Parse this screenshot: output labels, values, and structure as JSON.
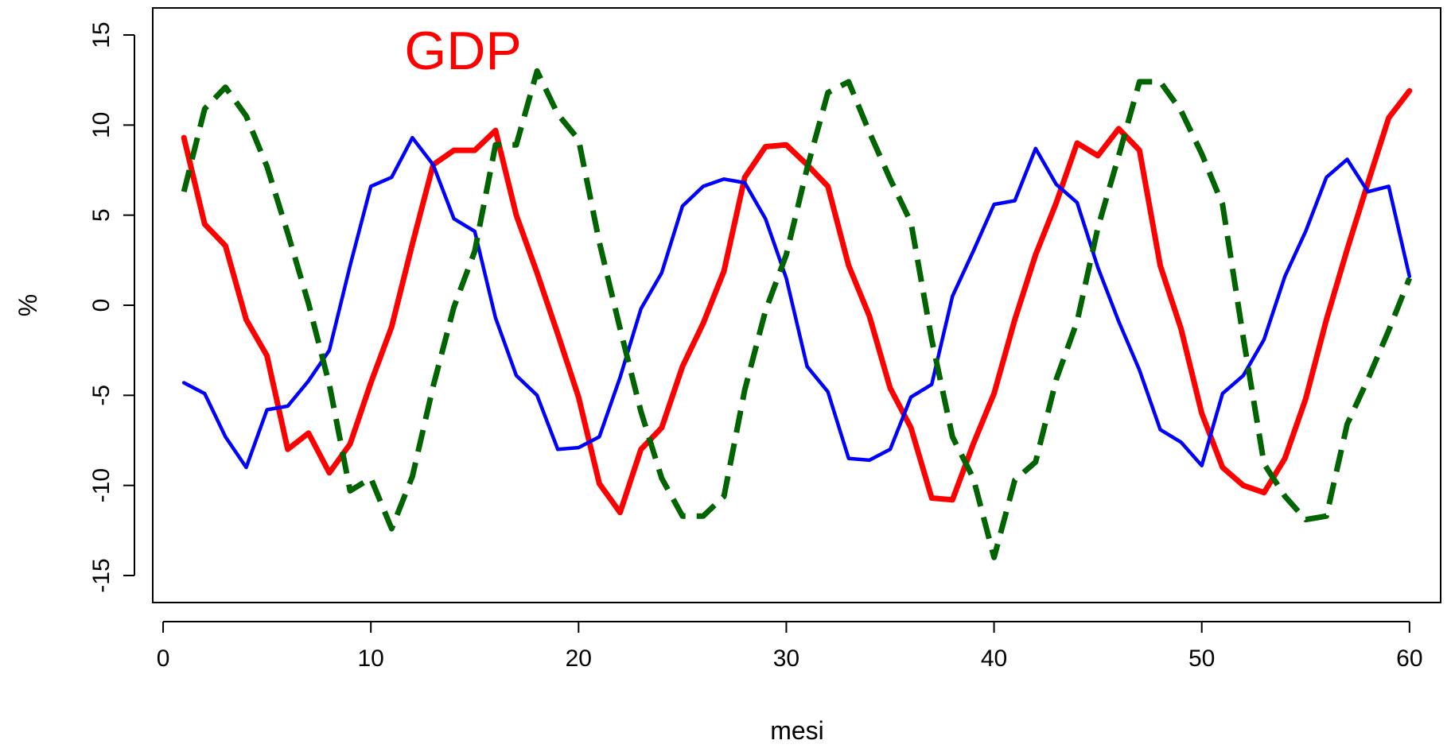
{
  "chart_data": {
    "type": "line",
    "annotation": "GDP",
    "xlabel": "mesi",
    "ylabel": "%",
    "xlim": [
      -0.5,
      61.5
    ],
    "ylim": [
      -16.5,
      16.5
    ],
    "xticks": [
      0,
      10,
      20,
      30,
      40,
      50,
      60
    ],
    "yticks": [
      -15,
      -10,
      -5,
      0,
      5,
      10,
      15
    ],
    "xtick_labels": [
      "0",
      "10",
      "20",
      "30",
      "40",
      "50",
      "60"
    ],
    "ytick_labels": [
      "-15",
      "-10",
      "-5",
      "0",
      "5",
      "10",
      "15"
    ],
    "grid": false,
    "legend": "none",
    "x": [
      1,
      2,
      3,
      4,
      5,
      6,
      7,
      8,
      9,
      10,
      11,
      12,
      13,
      14,
      15,
      16,
      17,
      18,
      19,
      20,
      21,
      22,
      23,
      24,
      25,
      26,
      27,
      28,
      29,
      30,
      31,
      32,
      33,
      34,
      35,
      36,
      37,
      38,
      39,
      40,
      41,
      42,
      43,
      44,
      45,
      46,
      47,
      48,
      49,
      50,
      51,
      52,
      53,
      54,
      55,
      56,
      57,
      58,
      59,
      60
    ],
    "series": [
      {
        "color": "#ff0000",
        "style": "solid",
        "width": "thick",
        "values": [
          9.3,
          4.5,
          3.3,
          -0.8,
          -2.8,
          -8.0,
          -7.1,
          -9.3,
          -7.7,
          -4.3,
          -1.2,
          3.4,
          7.8,
          8.6,
          8.6,
          9.7,
          5.0,
          1.8,
          -1.6,
          -5.1,
          -9.9,
          -11.5,
          -8.0,
          -6.8,
          -3.4,
          -1.0,
          1.9,
          7.1,
          8.8,
          8.9,
          7.8,
          6.6,
          2.2,
          -0.6,
          -4.6,
          -6.8,
          -10.7,
          -10.8,
          -7.7,
          -4.9,
          -0.8,
          2.8,
          5.7,
          9.0,
          8.3,
          9.8,
          8.6,
          2.2,
          -1.3,
          -6.0,
          -9.0,
          -10.0,
          -10.4,
          -8.5,
          -5.2,
          -0.8,
          3.1,
          6.8,
          10.4,
          11.9
        ]
      },
      {
        "color": "#0000ff",
        "style": "solid",
        "width": "medium",
        "values": [
          -4.3,
          -4.9,
          -7.3,
          -9.0,
          -5.8,
          -5.6,
          -4.2,
          -2.5,
          2.2,
          6.6,
          7.1,
          9.3,
          7.8,
          4.8,
          4.1,
          -0.7,
          -3.9,
          -5.0,
          -8.0,
          -7.9,
          -7.3,
          -4.0,
          -0.2,
          1.8,
          5.5,
          6.6,
          7.0,
          6.8,
          4.8,
          1.5,
          -3.4,
          -4.8,
          -8.5,
          -8.6,
          -8.0,
          -5.1,
          -4.4,
          0.5,
          3.0,
          5.6,
          5.8,
          8.7,
          6.7,
          5.7,
          2.1,
          -0.9,
          -3.6,
          -6.9,
          -7.6,
          -8.9,
          -4.9,
          -3.9,
          -1.9,
          1.6,
          4.1,
          7.1,
          8.1,
          6.3,
          6.6,
          1.6
        ]
      },
      {
        "color": "#006400",
        "style": "dashed",
        "width": "thick",
        "values": [
          6.3,
          10.9,
          12.1,
          10.5,
          7.7,
          4.0,
          0.1,
          -4.4,
          -10.3,
          -9.6,
          -12.4,
          -9.5,
          -4.5,
          -0.1,
          3.0,
          8.9,
          8.9,
          13.0,
          10.6,
          9.2,
          3.5,
          -1.3,
          -5.9,
          -9.6,
          -11.7,
          -11.7,
          -10.6,
          -4.7,
          -0.3,
          2.8,
          7.6,
          11.8,
          12.4,
          9.6,
          7.0,
          4.6,
          -1.9,
          -7.3,
          -9.6,
          -14.0,
          -9.7,
          -8.7,
          -4.1,
          -0.9,
          4.3,
          8.3,
          12.4,
          12.4,
          10.8,
          8.4,
          5.6,
          -1.8,
          -8.8,
          -10.6,
          -11.9,
          -11.7,
          -6.6,
          -4.1,
          -1.4,
          1.5
        ]
      }
    ]
  }
}
